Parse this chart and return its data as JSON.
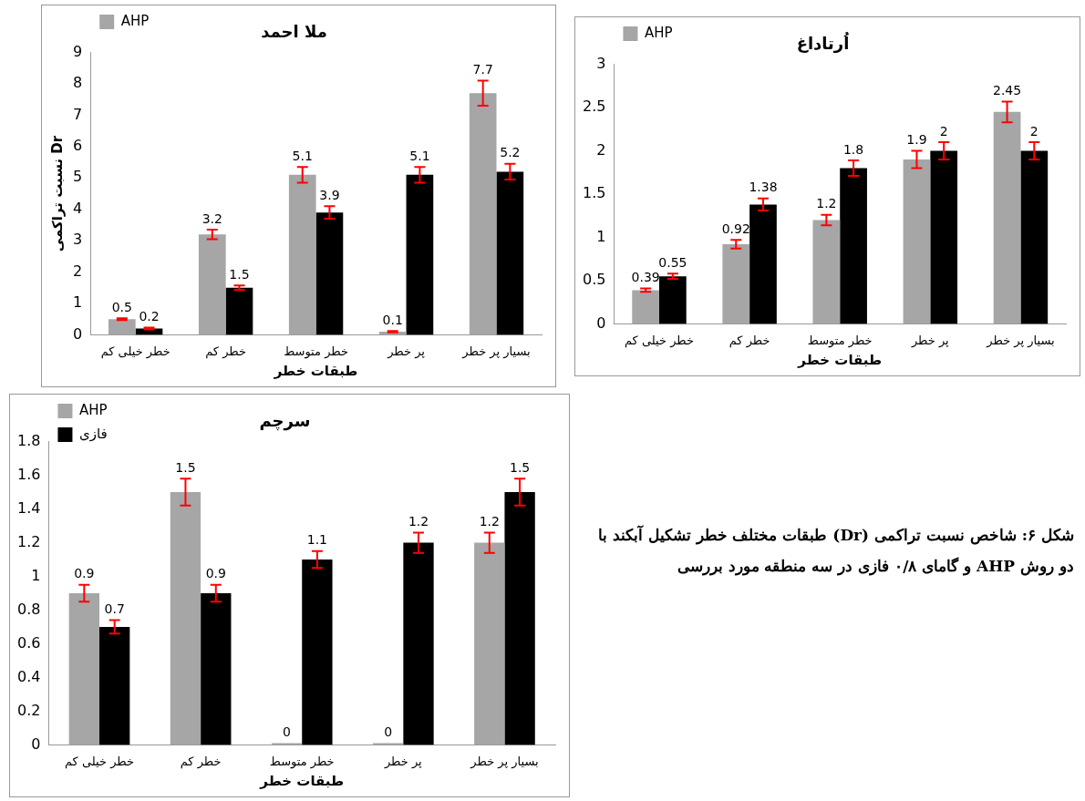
{
  "chart_data": [
    {
      "type": "bar",
      "title": "ملا احمد",
      "xlabel": "طبقات خطر",
      "ylabel": "نسبت تراکمی Dr",
      "categories": [
        "خطر خیلی کم",
        "خطر کم",
        "خطر متوسط",
        "پر خطر",
        "بسیار پر خطر"
      ],
      "ylim": [
        0,
        9
      ],
      "yticks": [
        0,
        1,
        2,
        3,
        4,
        5,
        6,
        7,
        8,
        9
      ],
      "grid": false,
      "legend": "top left",
      "data_labels": true,
      "series": [
        {
          "name": "AHP",
          "color": "#a6a6a6",
          "values": [
            0.5,
            3.2,
            5.1,
            0.1,
            7.7
          ],
          "errors": [
            0.03,
            0.15,
            0.25,
            0.02,
            0.4
          ]
        },
        {
          "color": "#000000",
          "values": [
            0.2,
            1.5,
            3.9,
            5.1,
            5.2
          ],
          "errors": [
            0.03,
            0.07,
            0.2,
            0.25,
            0.25
          ]
        }
      ]
    },
    {
      "type": "bar",
      "title": "اُرتاداغ",
      "xlabel": "طبقات خطر",
      "categories": [
        "خطر خیلی کم",
        "خطر کم",
        "خطر متوسط",
        "پر خطر",
        "بسیار پر خطر"
      ],
      "ylim": [
        0,
        3
      ],
      "yticks": [
        0,
        0.5,
        1,
        1.5,
        2,
        2.5,
        3
      ],
      "grid": false,
      "legend": "top left",
      "data_labels": true,
      "series": [
        {
          "name": "AHP",
          "color": "#a6a6a6",
          "values": [
            0.39,
            0.92,
            1.2,
            1.9,
            2.45
          ],
          "errors": [
            0.02,
            0.05,
            0.06,
            0.1,
            0.12
          ]
        },
        {
          "color": "#000000",
          "values": [
            0.55,
            1.38,
            1.8,
            2,
            2
          ],
          "errors": [
            0.03,
            0.07,
            0.09,
            0.1,
            0.1
          ]
        }
      ]
    },
    {
      "type": "bar",
      "title": "سرچم",
      "xlabel": "طبقات خطر",
      "categories": [
        "خطر خیلی کم",
        "خطر کم",
        "خطر متوسط",
        "پر خطر",
        "بسیار پر خطر"
      ],
      "ylim": [
        0,
        1.8
      ],
      "yticks": [
        0,
        0.2,
        0.4,
        0.6,
        0.8,
        1,
        1.2,
        1.4,
        1.6,
        1.8
      ],
      "grid": false,
      "legend": "top left",
      "data_labels": true,
      "series": [
        {
          "name": "AHP",
          "color": "#a6a6a6",
          "values": [
            0.9,
            1.5,
            0,
            0,
            1.2
          ],
          "errors": [
            0.05,
            0.08,
            null,
            null,
            0.06
          ]
        },
        {
          "name": "فازی",
          "color": "#000000",
          "values": [
            0.7,
            0.9,
            1.1,
            1.2,
            1.5
          ],
          "errors": [
            0.04,
            0.05,
            0.05,
            0.06,
            0.08
          ]
        }
      ]
    },
    {
      "type": "other",
      "annotations": [
        "شکل ۶: شاخص نسبت تراکمی (Dr) طبقات مختلف خطر تشکیل آبکند با دو روش AHP و گامای ۰/۸ فازی در سه منطقه مورد بررسی"
      ]
    }
  ]
}
